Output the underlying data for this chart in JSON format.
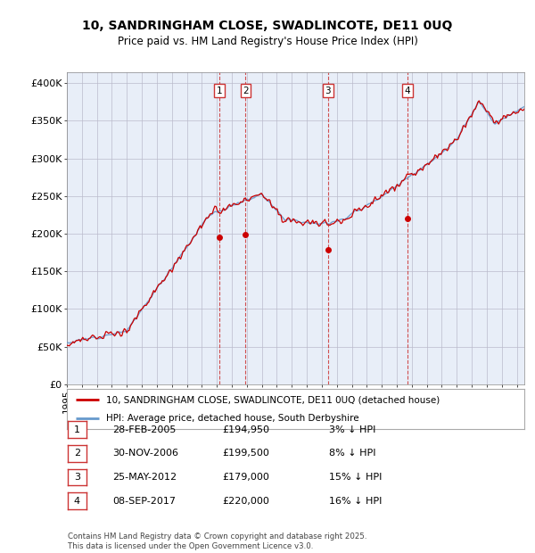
{
  "title_line1": "10, SANDRINGHAM CLOSE, SWADLINCOTE, DE11 0UQ",
  "title_line2": "Price paid vs. HM Land Registry's House Price Index (HPI)",
  "ylabel_ticks": [
    "£0",
    "£50K",
    "£100K",
    "£150K",
    "£200K",
    "£250K",
    "£300K",
    "£350K",
    "£400K"
  ],
  "ytick_values": [
    0,
    50000,
    100000,
    150000,
    200000,
    250000,
    300000,
    350000,
    400000
  ],
  "ylim": [
    0,
    415000
  ],
  "xlim_start": 1995.0,
  "xlim_end": 2025.5,
  "hpi_color": "#6699cc",
  "price_color": "#cc0000",
  "sale_marker_color": "#cc0000",
  "vline_color": "#cc3333",
  "background_color": "#e8eef8",
  "legend_box_entries": [
    "10, SANDRINGHAM CLOSE, SWADLINCOTE, DE11 0UQ (detached house)",
    "HPI: Average price, detached house, South Derbyshire"
  ],
  "sale_transactions": [
    {
      "num": 1,
      "date": "28-FEB-2005",
      "price": "£194,950",
      "pct": "3%",
      "year": 2005.16
    },
    {
      "num": 2,
      "date": "30-NOV-2006",
      "price": "£199,500",
      "pct": "8%",
      "year": 2006.92
    },
    {
      "num": 3,
      "date": "25-MAY-2012",
      "price": "£179,000",
      "pct": "15%",
      "year": 2012.4
    },
    {
      "num": 4,
      "date": "08-SEP-2017",
      "price": "£220,000",
      "pct": "16%",
      "year": 2017.69
    }
  ],
  "sale_prices": [
    194950,
    199500,
    179000,
    220000
  ],
  "footer_text": "Contains HM Land Registry data © Crown copyright and database right 2025.\nThis data is licensed under the Open Government Licence v3.0."
}
